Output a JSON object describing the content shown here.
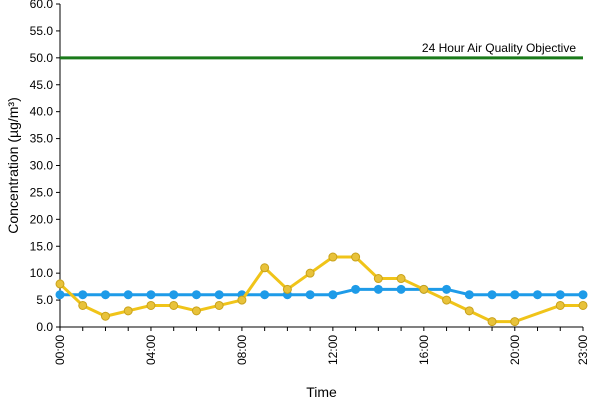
{
  "chart_data": {
    "type": "line",
    "title": "",
    "xlabel": "Time",
    "ylabel": "Concentration (µg/m³)",
    "ylim": [
      0,
      60
    ],
    "yticks": [
      "0.0",
      "5.0",
      "10.0",
      "15.0",
      "20.0",
      "25.0",
      "30.0",
      "35.0",
      "40.0",
      "45.0",
      "50.0",
      "55.0",
      "60.0"
    ],
    "xlim": [
      0,
      23
    ],
    "xtick_hours": [
      0,
      4,
      8,
      12,
      16,
      20,
      23
    ],
    "xtick_labels": [
      "00:00",
      "04:00",
      "08:00",
      "12:00",
      "16:00",
      "20:00",
      "23:00"
    ],
    "grid": false,
    "x": [
      0,
      1,
      2,
      3,
      4,
      5,
      6,
      7,
      8,
      9,
      10,
      11,
      12,
      13,
      14,
      15,
      16,
      17,
      18,
      19,
      20,
      21,
      22,
      23
    ],
    "series": [
      {
        "color": "#1e9be8",
        "values": [
          6,
          6,
          6,
          6,
          6,
          6,
          6,
          6,
          6,
          6,
          6,
          6,
          6,
          7,
          7,
          7,
          7,
          7,
          6,
          6,
          6,
          6,
          6,
          6
        ]
      },
      {
        "color": "#f0c419",
        "marker_color": "#e8c23a",
        "values": [
          8,
          4,
          2,
          3,
          4,
          4,
          3,
          4,
          5,
          11,
          7,
          10,
          13,
          13,
          9,
          9,
          7,
          5,
          3,
          1,
          1,
          null,
          4,
          4
        ]
      }
    ],
    "reference_line": {
      "value": 50,
      "label": "24 Hour Air Quality Objective",
      "color": "#1a7a1a"
    }
  }
}
